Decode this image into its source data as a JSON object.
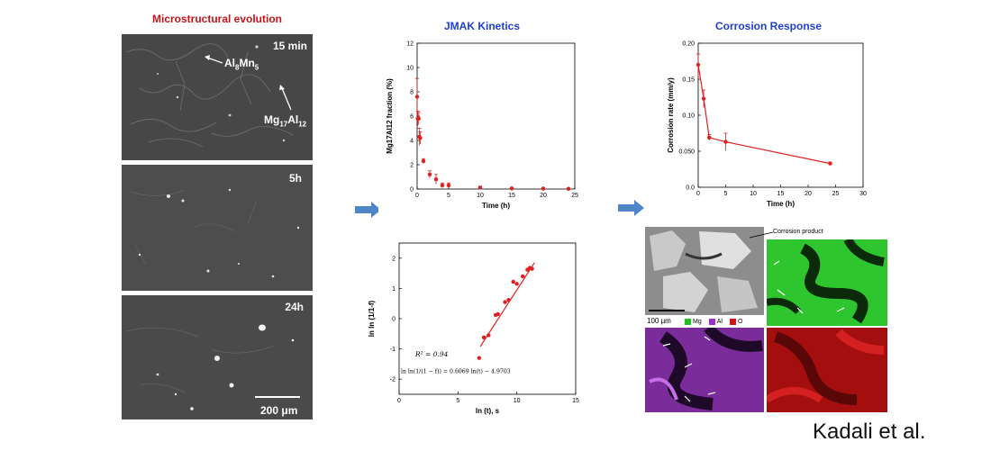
{
  "panels": {
    "micro_title": "Microstructural evolution",
    "jmak_title": "JMAK Kinetics",
    "corrosion_title": "Corrosion Response"
  },
  "sem": {
    "label_15min": "15 min",
    "label_5h": "5h",
    "label_24h": "24h",
    "phase_almn_main": "Al",
    "phase_almn_sub1": "8",
    "phase_almn_mid": "Mn",
    "phase_almn_sub2": "5",
    "phase_mgal_main": "Mg",
    "phase_mgal_sub1": "17",
    "phase_mgal_mid": "Al",
    "phase_mgal_sub2": "12",
    "scale_bar_label": "200 μm"
  },
  "eds": {
    "corrosion_product_label": "Corrosion product",
    "scale_bar_label": "100 μm",
    "legend": [
      {
        "label": "Mg",
        "color": "#22c022"
      },
      {
        "label": "Al",
        "color": "#9b30c8"
      },
      {
        "label": "O",
        "color": "#d81010"
      }
    ]
  },
  "credit": "Kadali et al.",
  "chart_data": [
    {
      "type": "scatter",
      "title": "",
      "xlabel": "Time (h)",
      "ylabel": "Mg17Al12 fraction (%)",
      "xlim": [
        0,
        25
      ],
      "ylim": [
        0,
        12
      ],
      "xticks": [
        "0",
        "5",
        "10",
        "15",
        "20",
        "25"
      ],
      "yticks": [
        "0",
        "2",
        "4",
        "6",
        "8",
        "10",
        "12"
      ],
      "color": "#e02020",
      "points": [
        {
          "x": 0.0,
          "y": 7.6,
          "err": 1.5
        },
        {
          "x": 0.1,
          "y": 5.8,
          "err": 0.6
        },
        {
          "x": 0.25,
          "y": 5.8,
          "err": 0.5
        },
        {
          "x": 0.35,
          "y": 4.3,
          "err": 0.7
        },
        {
          "x": 0.5,
          "y": 4.2,
          "err": 0.5
        },
        {
          "x": 1.0,
          "y": 2.3,
          "err": 0.2
        },
        {
          "x": 2.0,
          "y": 1.2,
          "err": 0.3
        },
        {
          "x": 3.0,
          "y": 0.8,
          "err": 0.4
        },
        {
          "x": 4.0,
          "y": 0.3,
          "err": 0.2
        },
        {
          "x": 5.0,
          "y": 0.3,
          "err": 0.2
        },
        {
          "x": 10.0,
          "y": 0.12,
          "err": 0.1
        },
        {
          "x": 15.0,
          "y": 0.05,
          "err": 0.05
        },
        {
          "x": 20.0,
          "y": 0.03,
          "err": 0.03
        },
        {
          "x": 24.0,
          "y": 0.02,
          "err": 0.02
        }
      ]
    },
    {
      "type": "line",
      "title": "",
      "xlabel": "Time  (h)",
      "ylabel": "Corrosion rate (mm/y)",
      "xlim": [
        0,
        30
      ],
      "ylim": [
        0,
        0.2
      ],
      "xticks": [
        "0",
        "5",
        "10",
        "15",
        "20",
        "25",
        "30"
      ],
      "yticks": [
        "0.0",
        "0.050",
        "0.10",
        "0.15",
        "0.20"
      ],
      "color": "#e02020",
      "points": [
        {
          "x": 0.0,
          "y": 0.17,
          "err": 0.015
        },
        {
          "x": 1.0,
          "y": 0.123,
          "err": 0.012
        },
        {
          "x": 2.0,
          "y": 0.069,
          "err": 0.004
        },
        {
          "x": 5.0,
          "y": 0.063,
          "err": 0.012
        },
        {
          "x": 24.0,
          "y": 0.033,
          "err": 0.002
        }
      ]
    },
    {
      "type": "scatter",
      "title": "",
      "xlabel": "ln (t), s",
      "ylabel": "ln ln (1/1-f)",
      "xlim": [
        0,
        15
      ],
      "ylim": [
        -2.5,
        2.5
      ],
      "xticks": [
        "0",
        "5",
        "10",
        "15"
      ],
      "yticks": [
        "-2",
        "-1",
        "0",
        "1",
        "2"
      ],
      "color": "#e02020",
      "points": [
        {
          "x": 6.8,
          "y": -1.3
        },
        {
          "x": 7.2,
          "y": -0.62
        },
        {
          "x": 7.6,
          "y": -0.55
        },
        {
          "x": 8.2,
          "y": 0.12
        },
        {
          "x": 8.4,
          "y": 0.15
        },
        {
          "x": 9.0,
          "y": 0.55
        },
        {
          "x": 9.3,
          "y": 0.62
        },
        {
          "x": 9.7,
          "y": 1.22
        },
        {
          "x": 10.0,
          "y": 1.15
        },
        {
          "x": 10.5,
          "y": 1.4
        },
        {
          "x": 10.9,
          "y": 1.62
        },
        {
          "x": 11.1,
          "y": 1.68
        },
        {
          "x": 11.3,
          "y": 1.65
        }
      ],
      "fit": {
        "x0": 6.9,
        "y0": -0.92,
        "x1": 11.5,
        "y1": 1.85
      },
      "annotation_r2": "R² = 0.94",
      "annotation_eq": "ln ln(1/(1 − f)) = 0.6069 ln(t) − 4.9703"
    }
  ]
}
